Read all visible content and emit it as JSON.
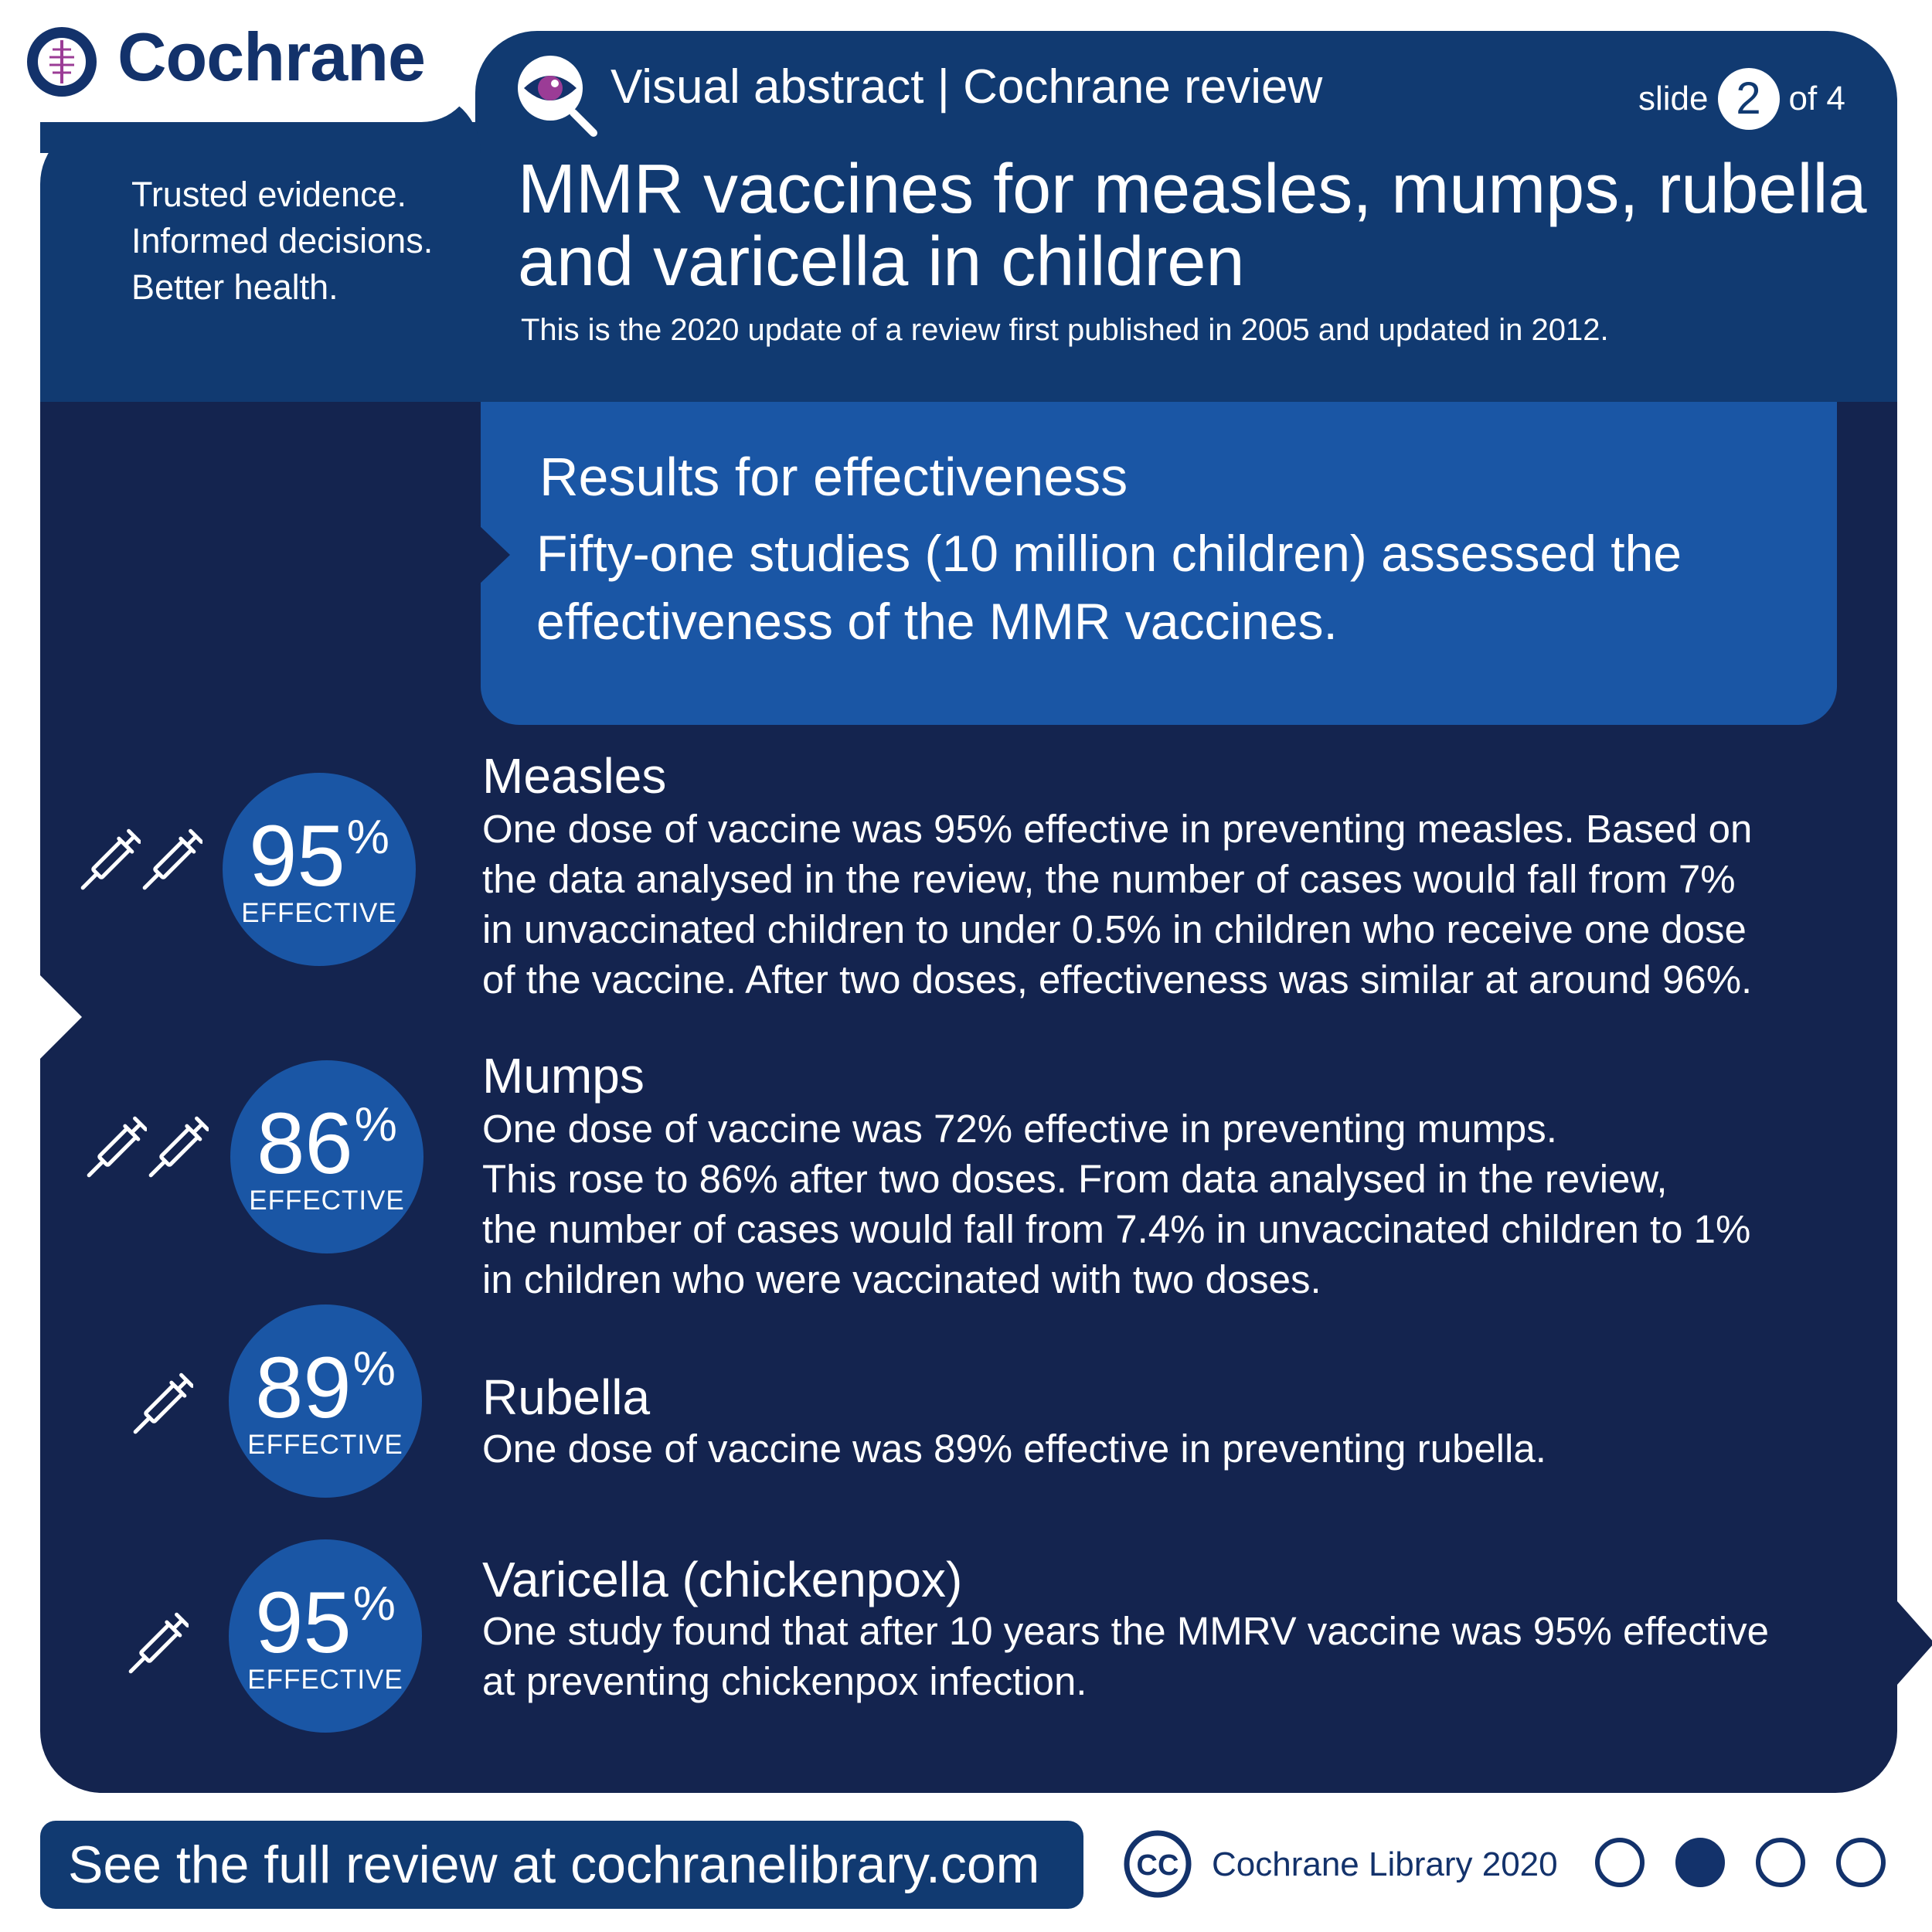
{
  "brand": {
    "name": "Cochrane",
    "tagline": [
      "Trusted evidence.",
      "Informed decisions.",
      "Better health."
    ]
  },
  "header": {
    "label": "Visual abstract | Cochrane review",
    "slide": {
      "prefix": "slide",
      "current": "2",
      "suffix": "of 4"
    },
    "title": "MMR vaccines for measles, mumps, rubella and varicella in children",
    "subtitle": "This is the 2020 update of a review first published in 2005 and updated in 2012."
  },
  "results": {
    "title": "Results for effectiveness",
    "text": "Fifty-one studies (10 million children) assessed the effectiveness of the MMR vaccines."
  },
  "outcomes": [
    {
      "name": "Measles",
      "percent": "95",
      "percent_sign": "%",
      "badge": "EFFECTIVE",
      "doses": 2,
      "text": "One dose of vaccine was 95% effective in preventing measles. Based on\nthe data analysed in the review,  the number of cases would fall from 7%\n in unvaccinated children to under 0.5% in children who receive one dose\nof the vaccine. After two doses, effectiveness was similar at around 96%."
    },
    {
      "name": "Mumps",
      "percent": "86",
      "percent_sign": "%",
      "badge": "EFFECTIVE",
      "doses": 2,
      "text": "One dose of vaccine was 72% effective in preventing mumps.\nThis rose to 86% after two doses. From data analysed in the review,\nthe number of cases would fall from 7.4% in unvaccinated children to 1%\nin children who were vaccinated with two doses."
    },
    {
      "name": "Rubella",
      "percent": "89",
      "percent_sign": "%",
      "badge": "EFFECTIVE",
      "doses": 1,
      "text": "One dose of vaccine was 89% effective in preventing rubella."
    },
    {
      "name": "Varicella (chickenpox)",
      "percent": "95",
      "percent_sign": "%",
      "badge": "EFFECTIVE",
      "doses": 1,
      "text": "One study found that after 10 years the MMRV vaccine was 95% effective\nat preventing chickenpox infection."
    }
  ],
  "footer": {
    "link_text": "See the full review at cochranelibrary.com",
    "cc_label": "CC",
    "credit": "Cochrane Library 2020",
    "pagination": {
      "total": 4,
      "active": 2
    }
  },
  "icons": {
    "logo": "cochrane-logo-icon",
    "eye": "eye-magnifier-icon",
    "syringe": "syringe-icon",
    "cc": "creative-commons-icon"
  },
  "colors": {
    "navy": "#113a71",
    "dark_navy": "#14244f",
    "blue": "#1a56a5",
    "accent_purple": "#9b3c96"
  }
}
